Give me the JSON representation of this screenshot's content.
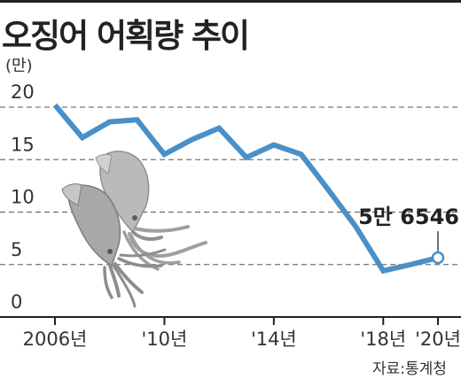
{
  "title": "오징어 어획량 추이",
  "unit": "(만)",
  "source": "자료:통계청",
  "chart_data": {
    "type": "line",
    "title": "오징어 어획량 추이",
    "ylabel": "(만)",
    "xlabel": "",
    "ylim": [
      0,
      20
    ],
    "yticks": [
      0,
      5,
      10,
      15,
      20
    ],
    "xlim": [
      2006,
      2020
    ],
    "xticks": [
      {
        "x": 2006,
        "label": "2006년"
      },
      {
        "x": 2010,
        "label": "'10년"
      },
      {
        "x": 2014,
        "label": "'14년"
      },
      {
        "x": 2018,
        "label": "'18년"
      },
      {
        "x": 2020,
        "label": "'20년"
      }
    ],
    "grid": true,
    "color": "#4a90c8",
    "series": [
      {
        "x": [
          2006,
          2007,
          2008,
          2009,
          2010,
          2011,
          2012,
          2013,
          2014,
          2015,
          2016,
          2017,
          2018,
          2019,
          2020
        ],
        "values": [
          20.2,
          17.1,
          18.6,
          18.8,
          15.5,
          16.9,
          18.0,
          15.2,
          16.4,
          15.5,
          12.1,
          8.6,
          4.4,
          5.0,
          5.65
        ]
      }
    ],
    "annotation": {
      "x": 2020,
      "y": 5.65,
      "text": "5만 6546"
    }
  },
  "illustration": "squid-illustration"
}
